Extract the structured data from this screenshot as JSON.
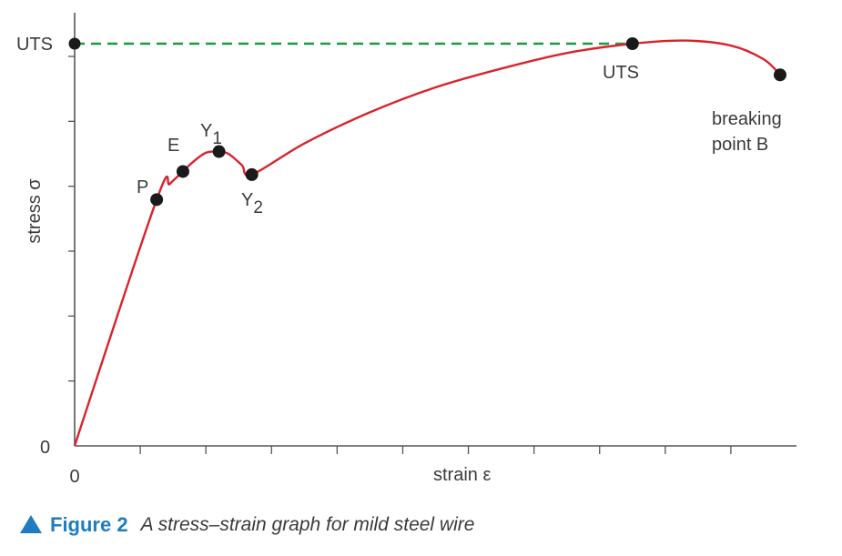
{
  "chart_data": {
    "type": "line",
    "title": "",
    "xlabel": "strain ε",
    "ylabel": "stress σ",
    "x_tick_label": "0",
    "y_tick_labels": {
      "zero": "0",
      "top": "UTS"
    },
    "xlim": [
      0,
      11
    ],
    "ylim": [
      0,
      6.5
    ],
    "grid": false,
    "series": [
      {
        "color": "#d9232e",
        "x": [
          0,
          1.25,
          1.45,
          1.65,
          1.8,
          2.0,
          2.2,
          2.35,
          2.55,
          2.7,
          3.5,
          4.5,
          5.5,
          6.5,
          7.5,
          8.5,
          9.3,
          10.0,
          10.5,
          10.75
        ],
        "y": [
          0,
          3.95,
          4.2,
          4.4,
          4.55,
          4.7,
          4.72,
          4.68,
          4.5,
          4.35,
          4.85,
          5.35,
          5.75,
          6.05,
          6.3,
          6.45,
          6.5,
          6.42,
          6.2,
          5.95
        ]
      }
    ],
    "points": [
      {
        "label": "P",
        "x": 1.25,
        "y": 3.95
      },
      {
        "label": "E",
        "x": 1.65,
        "y": 4.4
      },
      {
        "label": "Y",
        "sub": "1",
        "x": 2.2,
        "y": 4.72
      },
      {
        "label": "Y",
        "sub": "2",
        "x": 2.7,
        "y": 4.35
      },
      {
        "label": "UTS",
        "x": 8.5,
        "y": 6.45
      },
      {
        "label": "breaking",
        "label2": "point B",
        "x": 10.75,
        "y": 5.95
      }
    ],
    "reference_line": {
      "y": 6.45,
      "color": "#1f9a3b",
      "style": "dashed"
    },
    "axis_color": "#555555",
    "marker_color": "#1a1a1a"
  },
  "caption": {
    "figure_label": "Figure 2",
    "text": "A stress–strain graph for mild steel wire",
    "accent_color": "#1f7cc1"
  }
}
